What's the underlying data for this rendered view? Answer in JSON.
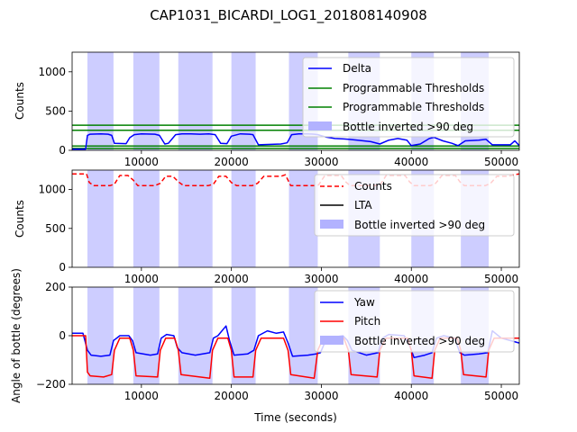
{
  "figure": {
    "title": "CAP1031_BICARDI_LOG1_201808140908",
    "xlabel": "Time (seconds)"
  },
  "colors": {
    "delta": "#0000ff",
    "threshold": "#008000",
    "span": "#b2b2ff",
    "counts": "#ff0000",
    "lta": "#000000",
    "yaw": "#0000ff",
    "pitch": "#ff0000"
  },
  "chart_data": [
    {
      "type": "line",
      "ylabel": "Counts",
      "xlim": [
        2300,
        52000
      ],
      "ylim": [
        0,
        1250
      ],
      "xticks": [
        10000,
        20000,
        30000,
        40000,
        50000
      ],
      "xtick_labels": [
        "10000",
        "20000",
        "30000",
        "40000",
        "50000"
      ],
      "yticks": [
        0,
        500,
        1000
      ],
      "ytick_labels": [
        "0",
        "500",
        "1000"
      ],
      "legend": {
        "position": "top-right",
        "entries": [
          "Delta",
          "Programmable Thresholds",
          "Programmable Thresholds",
          "Bottle inverted >90 deg"
        ]
      },
      "spans": [
        [
          4000,
          6900
        ],
        [
          9100,
          12000
        ],
        [
          14100,
          17900
        ],
        [
          20000,
          22700
        ],
        [
          26400,
          29600
        ],
        [
          33000,
          36500
        ],
        [
          40000,
          42500
        ],
        [
          45500,
          48600
        ]
      ],
      "hlines": [
        {
          "name": "Programmable Thresholds",
          "y": 255
        },
        {
          "name": "Programmable Thresholds",
          "y": 320
        },
        {
          "name": "Programmable Thresholds",
          "y": 55
        },
        {
          "name": "Programmable Thresholds",
          "y": 25
        }
      ],
      "series": [
        {
          "name": "Delta",
          "x": [
            2300,
            3800,
            4000,
            4300,
            5500,
            6300,
            6700,
            7000,
            8300,
            8700,
            9200,
            10000,
            11500,
            12000,
            12600,
            13000,
            13800,
            14500,
            15500,
            16500,
            17500,
            18200,
            18800,
            19500,
            20000,
            21000,
            22000,
            22400,
            23000,
            25500,
            26200,
            26700,
            27500,
            28500,
            29200,
            29600,
            30500,
            31500,
            32500,
            33000,
            34000,
            35500,
            36500,
            37500,
            38500,
            39500,
            40000,
            41000,
            42000,
            42500,
            43500,
            44500,
            45200,
            46000,
            47500,
            48300,
            49000,
            50000,
            51000,
            51500,
            52000
          ],
          "values": [
            15,
            15,
            190,
            205,
            210,
            205,
            190,
            90,
            85,
            160,
            200,
            210,
            205,
            190,
            80,
            90,
            200,
            210,
            210,
            205,
            210,
            200,
            90,
            85,
            180,
            210,
            205,
            200,
            70,
            80,
            95,
            200,
            210,
            210,
            205,
            200,
            170,
            150,
            145,
            140,
            130,
            110,
            80,
            130,
            150,
            130,
            60,
            80,
            150,
            165,
            120,
            90,
            60,
            120,
            130,
            140,
            70,
            70,
            70,
            120,
            60
          ]
        }
      ]
    },
    {
      "type": "line",
      "ylabel": "Counts",
      "xlim": [
        2300,
        52000
      ],
      "ylim": [
        0,
        1250
      ],
      "xticks": [
        10000,
        20000,
        30000,
        40000,
        50000
      ],
      "xtick_labels": [
        "10000",
        "20000",
        "30000",
        "40000",
        "50000"
      ],
      "yticks": [
        0,
        500,
        1000
      ],
      "ytick_labels": [
        "0",
        "500",
        "1000"
      ],
      "legend": {
        "position": "top-right",
        "entries": [
          "Counts",
          "LTA",
          "Bottle inverted >90 deg"
        ]
      },
      "spans": [
        [
          4000,
          6900
        ],
        [
          9100,
          12000
        ],
        [
          14100,
          17900
        ],
        [
          20000,
          22700
        ],
        [
          26400,
          29600
        ],
        [
          33000,
          36500
        ],
        [
          40000,
          42500
        ],
        [
          45500,
          48600
        ]
      ],
      "series": [
        {
          "name": "Counts",
          "x": [
            2300,
            3900,
            4200,
            4700,
            6500,
            7000,
            7600,
            8500,
            9100,
            9600,
            11500,
            12100,
            12700,
            13500,
            14100,
            14700,
            17400,
            18000,
            18600,
            19400,
            20000,
            20600,
            22300,
            22900,
            23600,
            25500,
            26000,
            26600,
            29200,
            29700,
            30400,
            32200,
            32700,
            33200,
            35900,
            36600,
            37200,
            39300,
            39800,
            40300,
            42100,
            42700,
            43400,
            44900,
            45400,
            45900,
            48200,
            48800,
            49500,
            50800,
            51400,
            52000
          ],
          "values": [
            1200,
            1200,
            1090,
            1050,
            1050,
            1070,
            1180,
            1180,
            1120,
            1050,
            1050,
            1080,
            1170,
            1170,
            1100,
            1050,
            1050,
            1070,
            1170,
            1170,
            1090,
            1050,
            1050,
            1080,
            1170,
            1170,
            1190,
            1050,
            1050,
            1060,
            1180,
            1180,
            1100,
            1050,
            1050,
            1070,
            1180,
            1180,
            1100,
            1050,
            1050,
            1080,
            1180,
            1180,
            1100,
            1050,
            1050,
            1080,
            1170,
            1170,
            1190,
            1200
          ]
        },
        {
          "name": "LTA",
          "x": [],
          "values": []
        }
      ]
    },
    {
      "type": "line",
      "ylabel": "Angle of bottle (degrees)",
      "xlabel": "Time (seconds)",
      "xlim": [
        2300,
        52000
      ],
      "ylim": [
        -200,
        200
      ],
      "xticks": [
        10000,
        20000,
        30000,
        40000,
        50000
      ],
      "xtick_labels": [
        "10000",
        "20000",
        "30000",
        "40000",
        "50000"
      ],
      "yticks": [
        -200,
        0,
        200
      ],
      "ytick_labels": [
        "−200",
        "0",
        "200"
      ],
      "legend": {
        "position": "top-right",
        "entries": [
          "Yaw",
          "Pitch",
          "Bottle inverted >90 deg"
        ]
      },
      "spans": [
        [
          4000,
          6900
        ],
        [
          9100,
          12000
        ],
        [
          14100,
          17900
        ],
        [
          20000,
          22700
        ],
        [
          26400,
          29600
        ],
        [
          33000,
          36500
        ],
        [
          40000,
          42500
        ],
        [
          45500,
          48600
        ]
      ],
      "series": [
        {
          "name": "Yaw",
          "x": [
            2300,
            3500,
            4000,
            4400,
            5500,
            6500,
            6900,
            7600,
            8600,
            9000,
            9400,
            11000,
            11800,
            12200,
            12800,
            13600,
            14000,
            14500,
            16000,
            17600,
            18000,
            18500,
            19400,
            19800,
            20300,
            21800,
            22500,
            23000,
            24000,
            25000,
            25800,
            26300,
            26800,
            28500,
            29400,
            29900,
            30600,
            32400,
            32900,
            33400,
            35000,
            36300,
            36800,
            37500,
            39200,
            39800,
            40300,
            41500,
            42300,
            42800,
            43600,
            44800,
            45400,
            45900,
            47500,
            48500,
            49000,
            50000,
            51000,
            52000
          ],
          "values": [
            10,
            10,
            -60,
            -80,
            -85,
            -80,
            -20,
            0,
            0,
            -20,
            -70,
            -80,
            -75,
            -10,
            5,
            0,
            -50,
            -70,
            -80,
            -70,
            -10,
            0,
            40,
            -20,
            -80,
            -75,
            -60,
            0,
            20,
            10,
            15,
            -30,
            -85,
            -80,
            -75,
            -70,
            -10,
            0,
            -20,
            -60,
            -80,
            -70,
            -10,
            5,
            0,
            -40,
            -90,
            -80,
            -70,
            -10,
            0,
            -10,
            -70,
            -80,
            -75,
            -70,
            20,
            -10,
            -20,
            -30
          ]
        },
        {
          "name": "Pitch",
          "x": [
            2300,
            3800,
            4000,
            4300,
            5800,
            6700,
            7000,
            7600,
            8700,
            9100,
            9400,
            11800,
            12100,
            12700,
            13700,
            14100,
            14400,
            17600,
            17900,
            18500,
            19600,
            20000,
            20300,
            22400,
            22700,
            23300,
            25800,
            26300,
            26600,
            29200,
            29600,
            30200,
            32500,
            33000,
            33300,
            36200,
            36500,
            37200,
            39600,
            40000,
            40300,
            42300,
            42600,
            43200,
            45100,
            45500,
            45800,
            48300,
            48600,
            49200,
            52000
          ],
          "values": [
            0,
            0,
            -150,
            -165,
            -170,
            -160,
            -60,
            -10,
            -10,
            -60,
            -165,
            -170,
            -60,
            -10,
            -10,
            -60,
            -160,
            -175,
            -60,
            -10,
            -10,
            -60,
            -170,
            -170,
            -60,
            -10,
            -10,
            -60,
            -160,
            -175,
            -60,
            -10,
            -10,
            -60,
            -160,
            -170,
            -60,
            -10,
            -10,
            -60,
            -165,
            -175,
            -60,
            -10,
            -10,
            -60,
            -160,
            -170,
            -60,
            -10,
            -10
          ]
        }
      ]
    }
  ]
}
